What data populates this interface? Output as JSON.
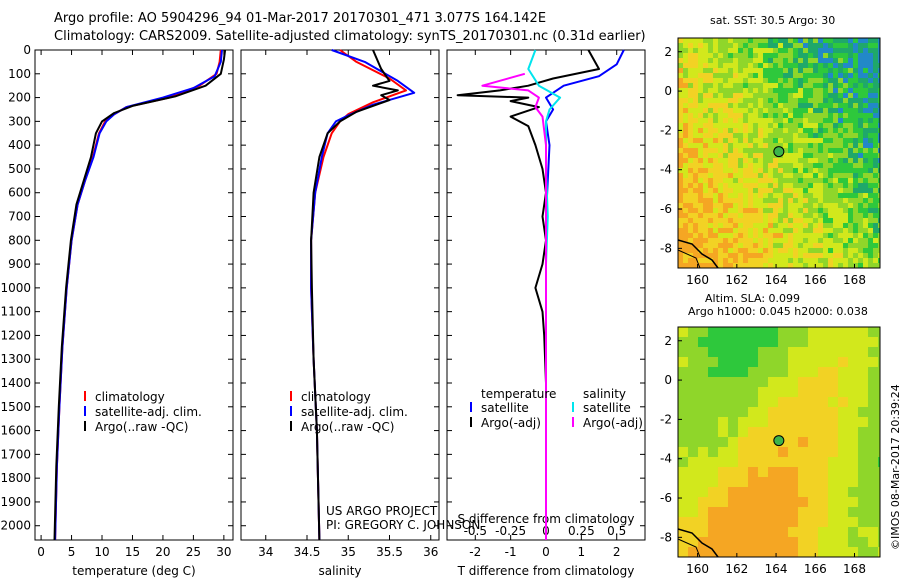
{
  "title": {
    "line1": "Argo profile: AO 5904296_94 01-Mar-2017 20170301_471 3.077S 164.142E",
    "line2": "Climatology: CARS2009. Satellite-adjusted climatology: synTS_20170301.nc (0.31d earlier)"
  },
  "colors": {
    "climatology": "#ff0000",
    "satellite": "#0000ff",
    "argo": "#000000",
    "cyan": "#00e5ee",
    "magenta": "#ff00ff"
  },
  "depth_axis": {
    "ticks": [
      0,
      100,
      200,
      300,
      400,
      500,
      600,
      700,
      800,
      900,
      1000,
      1100,
      1200,
      1300,
      1400,
      1500,
      1600,
      1700,
      1800,
      1900,
      2000
    ],
    "range": [
      0,
      2060
    ]
  },
  "chart_data": [
    {
      "type": "line",
      "name": "temperature",
      "xlabel": "temperature (deg C)",
      "xlim": [
        -1,
        31.5
      ],
      "x_ticks": [
        0,
        5,
        10,
        15,
        20,
        25,
        30
      ],
      "legend": [
        "climatology",
        "satellite-adj. clim.",
        "Argo(..raw -QC)"
      ],
      "series": [
        {
          "name": "climatology",
          "color": "#ff0000",
          "points": [
            [
              29.5,
              0
            ],
            [
              29.3,
              50
            ],
            [
              28.8,
              100
            ],
            [
              26,
              150
            ],
            [
              21,
              200
            ],
            [
              14,
              240
            ],
            [
              12,
              270
            ],
            [
              10.5,
              300
            ],
            [
              9.5,
              350
            ],
            [
              8.5,
              450
            ],
            [
              7.2,
              550
            ],
            [
              6,
              650
            ],
            [
              5,
              800
            ],
            [
              4.2,
              1000
            ],
            [
              3.5,
              1250
            ],
            [
              3,
              1500
            ],
            [
              2.6,
              1750
            ],
            [
              2.3,
              2060
            ]
          ]
        },
        {
          "name": "satellite-adj. clim.",
          "color": "#0000ff",
          "points": [
            [
              29.7,
              0
            ],
            [
              29.5,
              50
            ],
            [
              28.5,
              110
            ],
            [
              25,
              160
            ],
            [
              20,
              200
            ],
            [
              14,
              240
            ],
            [
              12,
              270
            ],
            [
              10.7,
              300
            ],
            [
              9.6,
              350
            ],
            [
              8.6,
              450
            ],
            [
              7.2,
              550
            ],
            [
              6,
              650
            ],
            [
              5,
              800
            ],
            [
              4.2,
              1000
            ],
            [
              3.5,
              1250
            ],
            [
              3,
              1500
            ],
            [
              2.6,
              1750
            ],
            [
              2.3,
              2060
            ]
          ]
        },
        {
          "name": "Argo(..raw -QC)",
          "color": "#000000",
          "points": [
            [
              30.2,
              0
            ],
            [
              30,
              40
            ],
            [
              29.5,
              100
            ],
            [
              27,
              150
            ],
            [
              22,
              195
            ],
            [
              15,
              235
            ],
            [
              12,
              265
            ],
            [
              10,
              300
            ],
            [
              9,
              350
            ],
            [
              8.2,
              450
            ],
            [
              7,
              550
            ],
            [
              5.8,
              650
            ],
            [
              4.9,
              800
            ],
            [
              4.1,
              1000
            ],
            [
              3.4,
              1250
            ],
            [
              2.9,
              1500
            ],
            [
              2.5,
              1750
            ],
            [
              2.2,
              2060
            ]
          ]
        }
      ]
    },
    {
      "type": "line",
      "name": "salinity",
      "xlabel": "salinity",
      "xlim": [
        33.7,
        36.1
      ],
      "x_ticks": [
        34,
        34.5,
        35,
        35.5,
        36
      ],
      "legend": [
        "climatology",
        "satellite-adj. clim.",
        "Argo(..raw -QC)"
      ],
      "series": [
        {
          "name": "climatology",
          "color": "#ff0000",
          "points": [
            [
              34.9,
              0
            ],
            [
              35.1,
              50
            ],
            [
              35.5,
              120
            ],
            [
              35.7,
              170
            ],
            [
              35.3,
              220
            ],
            [
              35.0,
              270
            ],
            [
              34.9,
              300
            ],
            [
              34.8,
              350
            ],
            [
              34.7,
              450
            ],
            [
              34.6,
              600
            ],
            [
              34.55,
              800
            ],
            [
              34.55,
              1000
            ],
            [
              34.58,
              1300
            ],
            [
              34.62,
              1600
            ],
            [
              34.65,
              2060
            ]
          ]
        },
        {
          "name": "satellite-adj. clim.",
          "color": "#0000ff",
          "points": [
            [
              34.8,
              0
            ],
            [
              35.2,
              50
            ],
            [
              35.6,
              130
            ],
            [
              35.8,
              180
            ],
            [
              35.3,
              230
            ],
            [
              35.0,
              275
            ],
            [
              34.85,
              300
            ],
            [
              34.75,
              350
            ],
            [
              34.68,
              450
            ],
            [
              34.6,
              600
            ],
            [
              34.55,
              800
            ],
            [
              34.55,
              1000
            ],
            [
              34.58,
              1300
            ],
            [
              34.62,
              1600
            ],
            [
              34.65,
              2060
            ]
          ]
        },
        {
          "name": "Argo(..raw -QC)",
          "color": "#000000",
          "points": [
            [
              35.3,
              0
            ],
            [
              35.4,
              80
            ],
            [
              35.5,
              130
            ],
            [
              35.3,
              150
            ],
            [
              35.6,
              170
            ],
            [
              35.4,
              190
            ],
            [
              35.5,
              210
            ],
            [
              35.1,
              260
            ],
            [
              34.9,
              300
            ],
            [
              34.75,
              350
            ],
            [
              34.65,
              450
            ],
            [
              34.58,
              600
            ],
            [
              34.55,
              800
            ],
            [
              34.56,
              1000
            ],
            [
              34.58,
              1300
            ],
            [
              34.62,
              1600
            ],
            [
              34.65,
              2060
            ]
          ]
        }
      ]
    },
    {
      "type": "line",
      "name": "difference",
      "xlabel": "T difference from climatology",
      "xlabel2": "S difference from climatology",
      "xlim": [
        -2.8,
        2.8
      ],
      "x_ticks": [
        -2,
        -1,
        0,
        1,
        2
      ],
      "x_ticks_top": [
        -0.5,
        -0.25,
        0,
        0.25,
        0.5
      ],
      "legend_headers": [
        "temperature",
        "salinity"
      ],
      "legend": [
        "satellite",
        "Argo(-adj)",
        "satellite",
        "Argo(-adj)"
      ],
      "series": [
        {
          "name": "temperature satellite",
          "color": "#0000ff",
          "points": [
            [
              2.2,
              0
            ],
            [
              2.0,
              60
            ],
            [
              1.5,
              110
            ],
            [
              0.5,
              150
            ],
            [
              0,
              200
            ],
            [
              0.2,
              250
            ],
            [
              0,
              300
            ],
            [
              0.1,
              400
            ],
            [
              0,
              700
            ],
            [
              0,
              2060
            ]
          ]
        },
        {
          "name": "temperature Argo(-adj)",
          "color": "#000000",
          "points": [
            [
              1.2,
              0
            ],
            [
              1.5,
              80
            ],
            [
              0.2,
              120
            ],
            [
              -0.5,
              150
            ],
            [
              -1.3,
              170
            ],
            [
              -2.5,
              190
            ],
            [
              -0.5,
              200
            ],
            [
              -1.0,
              215
            ],
            [
              -0.2,
              240
            ],
            [
              -1.0,
              280
            ],
            [
              -0.5,
              320
            ],
            [
              -0.3,
              400
            ],
            [
              -0.1,
              500
            ],
            [
              0,
              600
            ],
            [
              -0.1,
              700
            ],
            [
              0,
              800
            ],
            [
              -0.1,
              900
            ],
            [
              -0.3,
              1000
            ],
            [
              -0.1,
              1100
            ],
            [
              -0.05,
              1200
            ],
            [
              0,
              1400
            ],
            [
              0,
              2060
            ]
          ]
        },
        {
          "name": "salinity satellite",
          "color": "#00e5ee",
          "points": [
            [
              -0.3,
              0
            ],
            [
              -0.5,
              80
            ],
            [
              -0.2,
              150
            ],
            [
              0.4,
              200
            ],
            [
              0.1,
              250
            ],
            [
              0,
              300
            ],
            [
              0,
              500
            ],
            [
              0.05,
              700
            ],
            [
              0,
              900
            ],
            [
              0,
              2060
            ]
          ]
        },
        {
          "name": "salinity Argo(-adj)",
          "color": "#ff00ff",
          "points": [
            [
              -0.6,
              100
            ],
            [
              -1.8,
              150
            ],
            [
              -0.5,
              170
            ],
            [
              -0.2,
              200
            ],
            [
              -0.3,
              240
            ],
            [
              -0.1,
              280
            ],
            [
              0,
              400
            ],
            [
              0,
              2060
            ]
          ]
        }
      ]
    }
  ],
  "maps": [
    {
      "name": "sst-map",
      "title": "sat. SST: 30.5 Argo: 30",
      "lon_ticks": [
        160,
        162,
        164,
        166,
        168
      ],
      "lat_ticks": [
        2,
        0,
        -2,
        -4,
        -6,
        -8
      ],
      "argo_lon": 164.142,
      "argo_lat": -3.077,
      "xlim": [
        159,
        169.3
      ],
      "ylim": [
        -9,
        2.7
      ]
    },
    {
      "name": "sla-map",
      "title_line1": "Altim. SLA: 0.099",
      "title_line2": "Argo h1000: 0.045 h2000: 0.038",
      "lon_ticks": [
        160,
        162,
        164,
        166,
        168
      ],
      "lat_ticks": [
        2,
        0,
        -2,
        -4,
        -6,
        -8
      ],
      "argo_lon": 164.142,
      "argo_lat": -3.077,
      "xlim": [
        159,
        169.3
      ],
      "ylim": [
        -9,
        2.7
      ]
    }
  ],
  "credits": {
    "line1": "US ARGO PROJECT",
    "line2": "PI: GREGORY C. JOHNSON"
  },
  "watermark": "©IMOS 08-Mar-2017 20:39:24"
}
